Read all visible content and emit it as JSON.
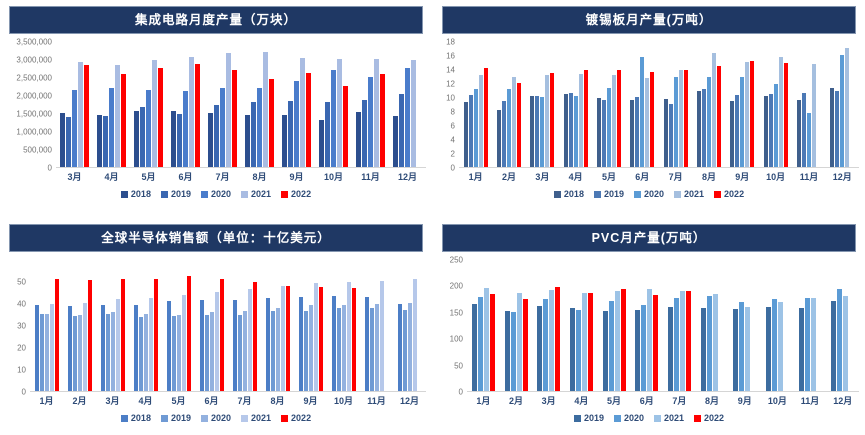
{
  "page": {
    "background": "#ffffff",
    "title_bar_color": "#1f3864",
    "title_text_color": "#ffffff"
  },
  "chart_data": [
    {
      "type": "bar",
      "title": "集成电路月度产量（万块）",
      "xlabel": "",
      "ylabel": "",
      "grid": false,
      "legend_position": "bottom",
      "y_scale_max": 3500000,
      "ylim": [
        0,
        3500000
      ],
      "y_ticks": [
        {
          "label": "0",
          "value": 0
        },
        {
          "label": "500,000",
          "value": 500000
        },
        {
          "label": "1,000,000",
          "value": 1000000
        },
        {
          "label": "1,500,000",
          "value": 1500000
        },
        {
          "label": "2,000,000",
          "value": 2000000
        },
        {
          "label": "2,500,000",
          "value": 2500000
        },
        {
          "label": "3,000,000",
          "value": 3000000
        },
        {
          "label": "3,500,000",
          "value": 3500000
        }
      ],
      "categories": [
        "3月",
        "4月",
        "5月",
        "6月",
        "7月",
        "8月",
        "9月",
        "10月",
        "11月",
        "12月"
      ],
      "series": [
        {
          "name": "2018",
          "color": "#2c4e8e",
          "values": [
            1500000,
            1450000,
            1580000,
            1580000,
            1520000,
            1470000,
            1450000,
            1310000,
            1530000,
            1440000
          ]
        },
        {
          "name": "2019",
          "color": "#3a67b1",
          "values": [
            1390000,
            1420000,
            1670000,
            1490000,
            1750000,
            1820000,
            1850000,
            1820000,
            1870000,
            2050000
          ]
        },
        {
          "name": "2020",
          "color": "#4a7ccb",
          "values": [
            2150000,
            2200000,
            2170000,
            2120000,
            2220000,
            2220000,
            2400000,
            2730000,
            2530000,
            2780000
          ]
        },
        {
          "name": "2021",
          "color": "#a9bce2",
          "values": [
            2930000,
            2870000,
            2990000,
            3090000,
            3180000,
            3230000,
            3050000,
            3020000,
            3020000,
            2990000
          ]
        },
        {
          "name": "2022",
          "color": "#fe0000",
          "values": [
            2850000,
            2600000,
            2760000,
            2880000,
            2720000,
            2470000,
            2620000,
            2260000,
            2600000,
            null
          ]
        }
      ]
    },
    {
      "type": "bar",
      "title": "镀锡板月产量(万吨）",
      "xlabel": "",
      "ylabel": "",
      "grid": false,
      "legend_position": "bottom",
      "y_scale_max": 18,
      "ylim": [
        0,
        18
      ],
      "y_ticks": [
        {
          "label": "0",
          "value": 0
        },
        {
          "label": "2",
          "value": 2
        },
        {
          "label": "4",
          "value": 4
        },
        {
          "label": "6",
          "value": 6
        },
        {
          "label": "8",
          "value": 8
        },
        {
          "label": "10",
          "value": 10
        },
        {
          "label": "12",
          "value": 12
        },
        {
          "label": "14",
          "value": 14
        },
        {
          "label": "16",
          "value": 16
        },
        {
          "label": "18",
          "value": 18
        }
      ],
      "categories": [
        "1月",
        "2月",
        "3月",
        "4月",
        "5月",
        "6月",
        "7月",
        "8月",
        "9月",
        "10月",
        "11月",
        "12月"
      ],
      "series": [
        {
          "name": "2018",
          "color": "#3f5f8c",
          "values": [
            9.3,
            8.2,
            10.2,
            10.5,
            9.9,
            9.6,
            9.8,
            10.9,
            9.5,
            10.2,
            9.7,
            11.4
          ]
        },
        {
          "name": "2019",
          "color": "#4c79b5",
          "values": [
            10.3,
            9.5,
            10.2,
            10.7,
            9.7,
            10.1,
            9.1,
            11.2,
            10.3,
            10.5,
            10.6,
            10.9
          ]
        },
        {
          "name": "2020",
          "color": "#5b9bd5",
          "values": [
            11.3,
            11.2,
            10.1,
            10.2,
            11.4,
            15.9,
            12.9,
            12.9,
            12.9,
            12.0,
            7.8,
            16.1
          ]
        },
        {
          "name": "2021",
          "color": "#a5bfdf",
          "values": [
            13.2,
            12.9,
            13.2,
            13.4,
            13.3,
            12.8,
            13.9,
            16.4,
            15.1,
            15.8,
            14.9,
            17.1
          ]
        },
        {
          "name": "2022",
          "color": "#ff0000",
          "values": [
            14.3,
            12.1,
            13.5,
            13.9,
            14.0,
            13.7,
            13.9,
            14.5,
            15.3,
            15.0,
            null,
            null
          ]
        }
      ]
    },
    {
      "type": "bar",
      "title": "全球半导体销售额（单位：十亿美元）",
      "xlabel": "",
      "ylabel": "",
      "grid": false,
      "legend_position": "bottom",
      "y_scale_max": 60,
      "ylim": [
        0,
        55
      ],
      "y_ticks": [
        {
          "label": "0",
          "value": 0
        },
        {
          "label": "10",
          "value": 10
        },
        {
          "label": "20",
          "value": 20
        },
        {
          "label": "30",
          "value": 30
        },
        {
          "label": "40",
          "value": 40
        },
        {
          "label": "50",
          "value": 50
        }
      ],
      "categories": [
        "1月",
        "2月",
        "3月",
        "4月",
        "5月",
        "6月",
        "7月",
        "8月",
        "9月",
        "10月",
        "11月",
        "12月"
      ],
      "series": [
        {
          "name": "2018",
          "color": "#4c7ec6",
          "values": [
            39.6,
            39.0,
            39.2,
            39.5,
            41.0,
            41.5,
            41.8,
            42.5,
            43.0,
            43.5,
            43.0,
            39.8
          ]
        },
        {
          "name": "2019",
          "color": "#6f9ad4",
          "values": [
            35.5,
            34.5,
            35.5,
            34.0,
            34.5,
            35.0,
            34.8,
            36.5,
            36.5,
            38.0,
            37.8,
            37.0
          ]
        },
        {
          "name": "2020",
          "color": "#93b1df",
          "values": [
            35.3,
            34.8,
            36.0,
            35.5,
            35.0,
            36.0,
            36.5,
            37.8,
            39.5,
            39.5,
            40.0,
            40.5
          ]
        },
        {
          "name": "2021",
          "color": "#b6c8ea",
          "values": [
            40.0,
            40.5,
            42.0,
            42.5,
            44.0,
            45.5,
            46.5,
            48.0,
            49.5,
            50.0,
            50.5,
            51.5
          ]
        },
        {
          "name": "2022",
          "color": "#ff0000",
          "values": [
            51.5,
            51.0,
            51.5,
            51.5,
            52.5,
            51.5,
            50.0,
            48.0,
            47.5,
            47.3,
            null,
            null
          ]
        }
      ]
    },
    {
      "type": "bar",
      "title": "PVC月产量(万吨）",
      "xlabel": "",
      "ylabel": "",
      "grid": false,
      "legend_position": "bottom",
      "y_scale_max": 250,
      "ylim": [
        0,
        250
      ],
      "y_ticks": [
        {
          "label": "0",
          "value": 0
        },
        {
          "label": "50",
          "value": 50
        },
        {
          "label": "100",
          "value": 100
        },
        {
          "label": "150",
          "value": 150
        },
        {
          "label": "200",
          "value": 200
        },
        {
          "label": "250",
          "value": 250
        }
      ],
      "categories": [
        "1月",
        "2月",
        "3月",
        "4月",
        "5月",
        "6月",
        "7月",
        "8月",
        "9月",
        "10月",
        "11月",
        "12月"
      ],
      "series": [
        {
          "name": "2019",
          "color": "#3c6c9f",
          "values": [
            167,
            152,
            162,
            158,
            153,
            155,
            161,
            159,
            157,
            160,
            158,
            172
          ]
        },
        {
          "name": "2020",
          "color": "#5b9bd5",
          "values": [
            180,
            150,
            176,
            154,
            171,
            164,
            177,
            181,
            170,
            176,
            178,
            195
          ]
        },
        {
          "name": "2021",
          "color": "#9dc3e6",
          "values": [
            197,
            187,
            193,
            188,
            190,
            194,
            191,
            185,
            161,
            170,
            177,
            181
          ]
        },
        {
          "name": "2022",
          "color": "#ff0000",
          "values": [
            186,
            176,
            198,
            187,
            195,
            183,
            191,
            null,
            null,
            null,
            null,
            null
          ]
        }
      ]
    }
  ]
}
